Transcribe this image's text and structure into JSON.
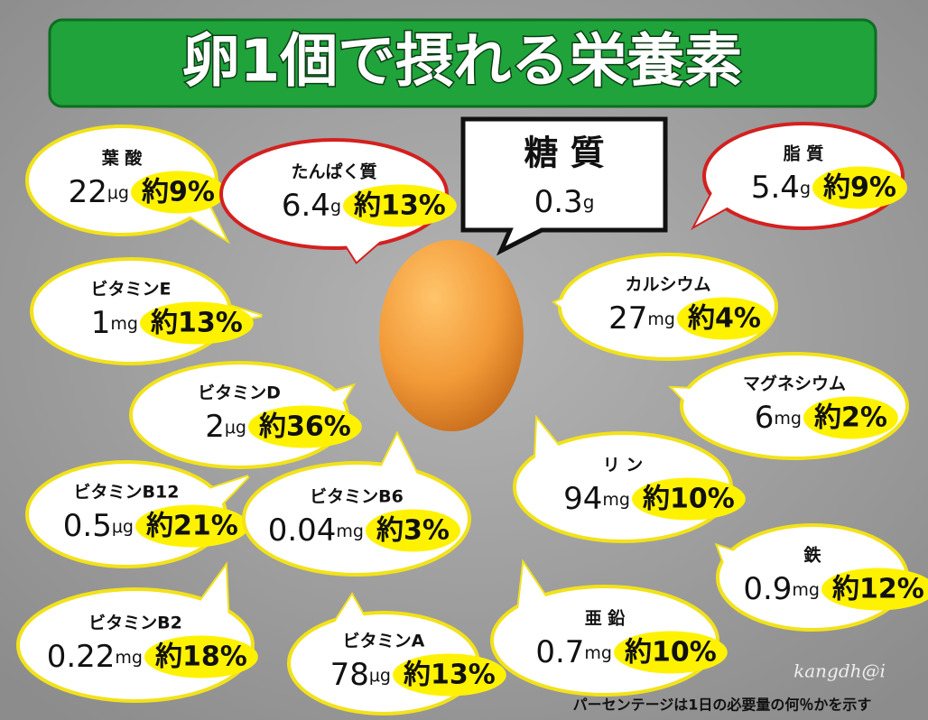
{
  "header": {
    "title": "卵1個で摂れる栄養素"
  },
  "sugar": {
    "name": "糖 質",
    "amount": "0.3",
    "unit": "g"
  },
  "items": [
    {
      "name": "葉 酸",
      "amount": "22",
      "unit": "μg",
      "share": "約9%"
    },
    {
      "name": "たんぱく質",
      "amount": "6.4",
      "unit": "g",
      "share": "約13%"
    },
    {
      "name": "脂 質",
      "amount": "5.4",
      "unit": "g",
      "share": "約9%"
    },
    {
      "name": "ビタミンE",
      "amount": "1",
      "unit": "mg",
      "share": "約13%"
    },
    {
      "name": "カルシウム",
      "amount": "27",
      "unit": "mg",
      "share": "約4%"
    },
    {
      "name": "ビタミンD",
      "amount": "2",
      "unit": "μg",
      "share": "約36%"
    },
    {
      "name": "マグネシウム",
      "amount": "6",
      "unit": "mg",
      "share": "約2%"
    },
    {
      "name": "リ ン",
      "amount": "94",
      "unit": "mg",
      "share": "約10%"
    },
    {
      "name": "ビタミンB12",
      "amount": "0.5",
      "unit": "μg",
      "share": "約21%"
    },
    {
      "name": "ビタミンB6",
      "amount": "0.04",
      "unit": "mg",
      "share": "約3%"
    },
    {
      "name": "鉄",
      "amount": "0.9",
      "unit": "mg",
      "share": "約12%"
    },
    {
      "name": "ビタミンB2",
      "amount": "0.22",
      "unit": "mg",
      "share": "約18%"
    },
    {
      "name": "ビタミンA",
      "amount": "78",
      "unit": "μg",
      "share": "約13%"
    },
    {
      "name": "亜 鉛",
      "amount": "0.7",
      "unit": "mg",
      "share": "約10%"
    }
  ],
  "footer": {
    "note": "パーセンテージは1日の必要量の何％かを示す",
    "signature": "kangdh@i"
  }
}
